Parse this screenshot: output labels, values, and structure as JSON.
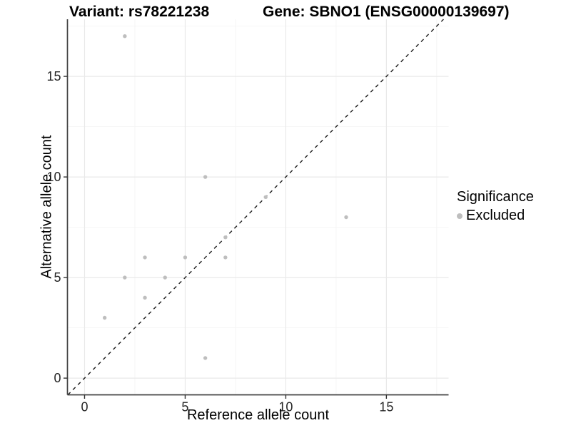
{
  "chart_data": {
    "type": "scatter",
    "title_left": "Variant: rs78221238",
    "title_right": "Gene: SBNO1 (ENSG00000139697)",
    "xlabel": "Reference allele count",
    "ylabel": "Alternative allele count",
    "xlim": [
      -0.85,
      18.09
    ],
    "ylim": [
      -0.83,
      17.84
    ],
    "x_ticks": [
      0,
      5,
      10,
      15
    ],
    "y_ticks": [
      0,
      5,
      10,
      15
    ],
    "x_minor_ticks": [
      2.5,
      7.5,
      12.5,
      17.5
    ],
    "y_minor_ticks": [
      2.5,
      7.5,
      12.5,
      17.5
    ],
    "grid": true,
    "identity_line": {
      "style": "dashed",
      "slope": 1,
      "intercept": 0
    },
    "series": [
      {
        "name": "Excluded",
        "color": "#bebebe",
        "points": [
          [
            1,
            3
          ],
          [
            2,
            5
          ],
          [
            2,
            17
          ],
          [
            3,
            4
          ],
          [
            3,
            6
          ],
          [
            4,
            5
          ],
          [
            5,
            6
          ],
          [
            6,
            1
          ],
          [
            6,
            10
          ],
          [
            7,
            6
          ],
          [
            7,
            7
          ],
          [
            9,
            9
          ],
          [
            13,
            8
          ]
        ]
      }
    ],
    "legend": {
      "title": "Significance",
      "position": "right",
      "items": [
        {
          "label": "Excluded",
          "color": "#bebebe"
        }
      ]
    },
    "colors": {
      "background": "#ffffff",
      "point": "#bebebe",
      "grid_major": "#e9e9e9",
      "grid_minor": "#f4f4f4",
      "axis_line": "#404040",
      "tick_mark": "#333333",
      "tick_label": "#262626",
      "dashed_line": "#1a1a1a"
    }
  }
}
